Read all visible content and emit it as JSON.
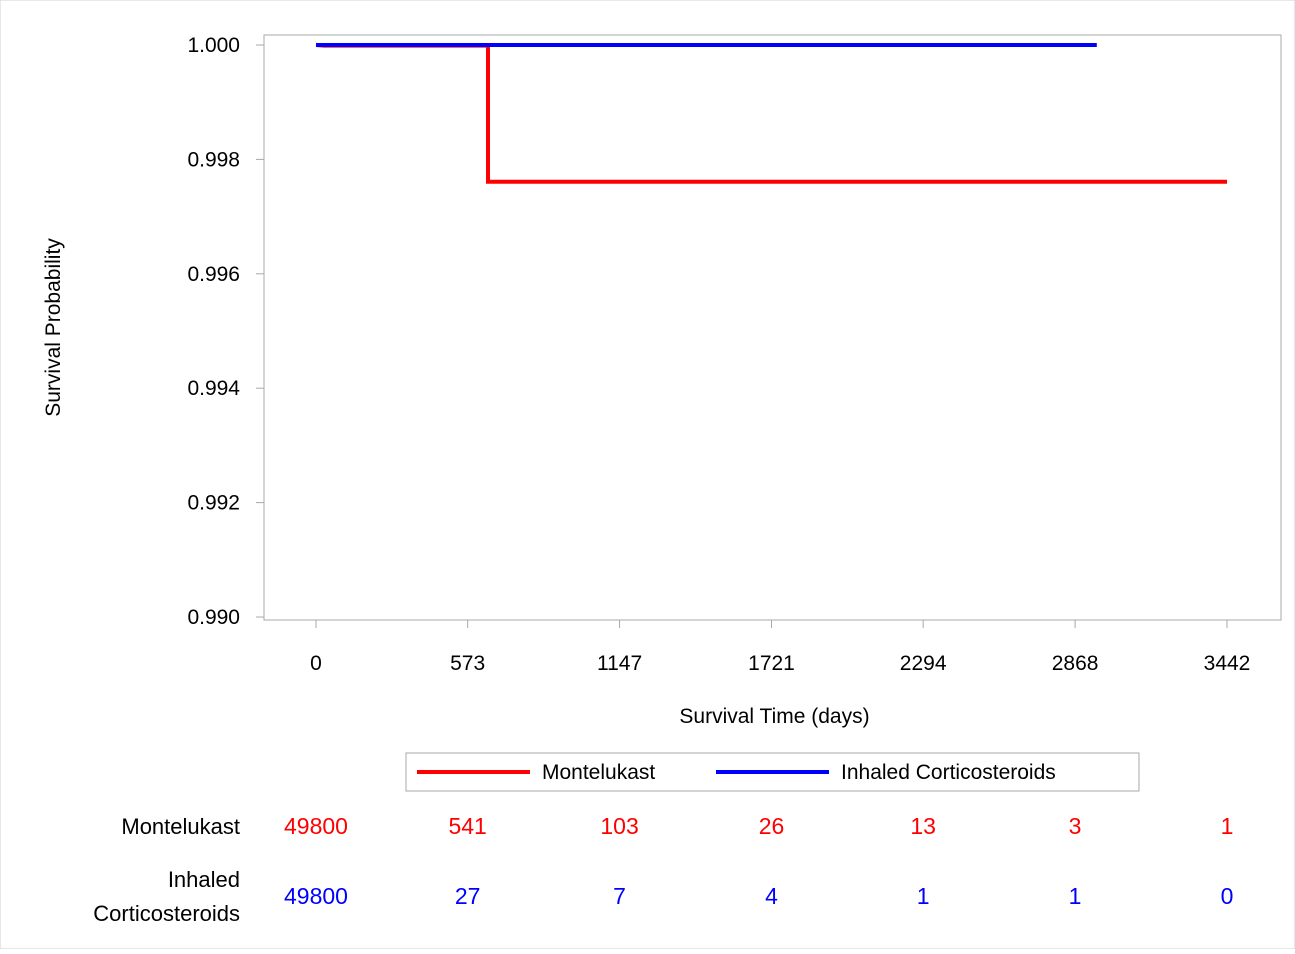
{
  "chart_data": {
    "type": "line",
    "step": true,
    "xlabel": "Survival Time (days)",
    "ylabel": "Survival Probability",
    "xlim": [
      -30,
      3500
    ],
    "ylim": [
      0.99,
      1.0
    ],
    "x_ticks": [
      0,
      573,
      1147,
      1721,
      2294,
      2868,
      3442
    ],
    "x_tick_labels": [
      "0",
      "573",
      "1147",
      "1721",
      "2294",
      "2868",
      "3442"
    ],
    "y_ticks": [
      0.99,
      0.992,
      0.994,
      0.996,
      0.998,
      1.0
    ],
    "y_tick_labels": [
      "0.990",
      "0.992",
      "0.994",
      "0.996",
      "0.998",
      "1.000"
    ],
    "grid": false,
    "legend_position": "bottom",
    "series": [
      {
        "name": "Montelukast",
        "color": "#ff0000",
        "points": [
          [
            0,
            1.0
          ],
          [
            30,
            0.99999
          ],
          [
            650,
            0.99999
          ],
          [
            650,
            0.99761
          ],
          [
            3442,
            0.99761
          ]
        ]
      },
      {
        "name": "Inhaled Corticosteroids",
        "color": "#0000ff",
        "points": [
          [
            0,
            1.0
          ],
          [
            2950,
            1.0
          ]
        ]
      }
    ],
    "risk_table": {
      "rows": [
        {
          "label_lines": [
            "Montelukast"
          ],
          "color": "#ff0000",
          "values": [
            "49800",
            "541",
            "103",
            "26",
            "13",
            "3",
            "1"
          ]
        },
        {
          "label_lines": [
            "Inhaled",
            "Corticosteroids"
          ],
          "color": "#0000ff",
          "values": [
            "49800",
            "27",
            "7",
            "4",
            "1",
            "1",
            "0"
          ]
        }
      ]
    }
  }
}
